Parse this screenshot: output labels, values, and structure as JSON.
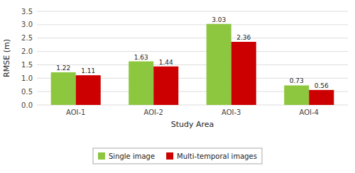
{
  "chart_data": {
    "type": "bar",
    "xlabel": "Study Area",
    "ylabel": "RMSE (m)",
    "categories": [
      "AOI-1",
      "AOI-2",
      "AOI-3",
      "AOI-4"
    ],
    "series": [
      {
        "name": "Single image",
        "color": "#8DC63F",
        "values": [
          1.22,
          1.63,
          3.03,
          0.73
        ]
      },
      {
        "name": "Multi-temporal images",
        "color": "#CC0000",
        "values": [
          1.11,
          1.44,
          2.36,
          0.56
        ]
      }
    ],
    "ylim": [
      0,
      3.5
    ],
    "yticks": [
      {
        "value": 0,
        "label": "0.0"
      },
      0.5,
      {
        "value": 1,
        "label": "1.0"
      },
      1.5,
      {
        "value": 2,
        "label": "2.0"
      },
      2.5,
      {
        "value": 3,
        "label": "3.0"
      },
      3.5
    ],
    "grid": true,
    "legend": "bottom",
    "data_labels": true
  }
}
